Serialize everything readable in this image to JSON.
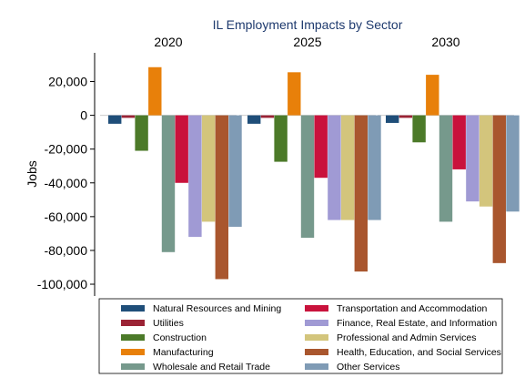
{
  "chart_data": {
    "type": "bar",
    "title": "IL Employment Impacts by Sector",
    "ylabel": "Jobs",
    "xlabel": "",
    "ylim": [
      -107000,
      37000
    ],
    "yticks": [
      20000,
      0,
      -20000,
      -40000,
      -60000,
      -80000,
      -100000
    ],
    "ytick_labels": [
      "20,000",
      "0",
      "-20,000",
      "-40,000",
      "-60,000",
      "-80,000",
      "-100,000"
    ],
    "panels": [
      "2020",
      "2025",
      "2030"
    ],
    "legend_position": "bottom",
    "grid": false,
    "series": [
      {
        "name": "Natural Resources and Mining",
        "color": "#1f4e79",
        "values": [
          -5000,
          -5000,
          -4500
        ]
      },
      {
        "name": "Utilities",
        "color": "#9b2335",
        "values": [
          -1500,
          -1500,
          -1500
        ]
      },
      {
        "name": "Construction",
        "color": "#4c7a29",
        "values": [
          -21000,
          -27500,
          -16000
        ]
      },
      {
        "name": "Manufacturing",
        "color": "#e8800a",
        "values": [
          28500,
          25500,
          24000
        ]
      },
      {
        "name": "Wholesale and Retail Trade",
        "color": "#76998c",
        "values": [
          -81000,
          -72500,
          -63000
        ]
      },
      {
        "name": "Transportation and Accommodation",
        "color": "#c9123c",
        "values": [
          -40000,
          -37000,
          -32000
        ]
      },
      {
        "name": "Finance, Real Estate, and Information",
        "color": "#a09ad4",
        "values": [
          -72000,
          -62000,
          -51000
        ]
      },
      {
        "name": "Professional and Admin Services",
        "color": "#d3c57c",
        "values": [
          -63000,
          -62000,
          -54000
        ]
      },
      {
        "name": "Health, Education, and Social Services",
        "color": "#a9562e",
        "values": [
          -97000,
          -92500,
          -87500
        ]
      },
      {
        "name": "Other Services",
        "color": "#7f9bb5",
        "values": [
          -66000,
          -62000,
          -57000
        ]
      }
    ]
  }
}
